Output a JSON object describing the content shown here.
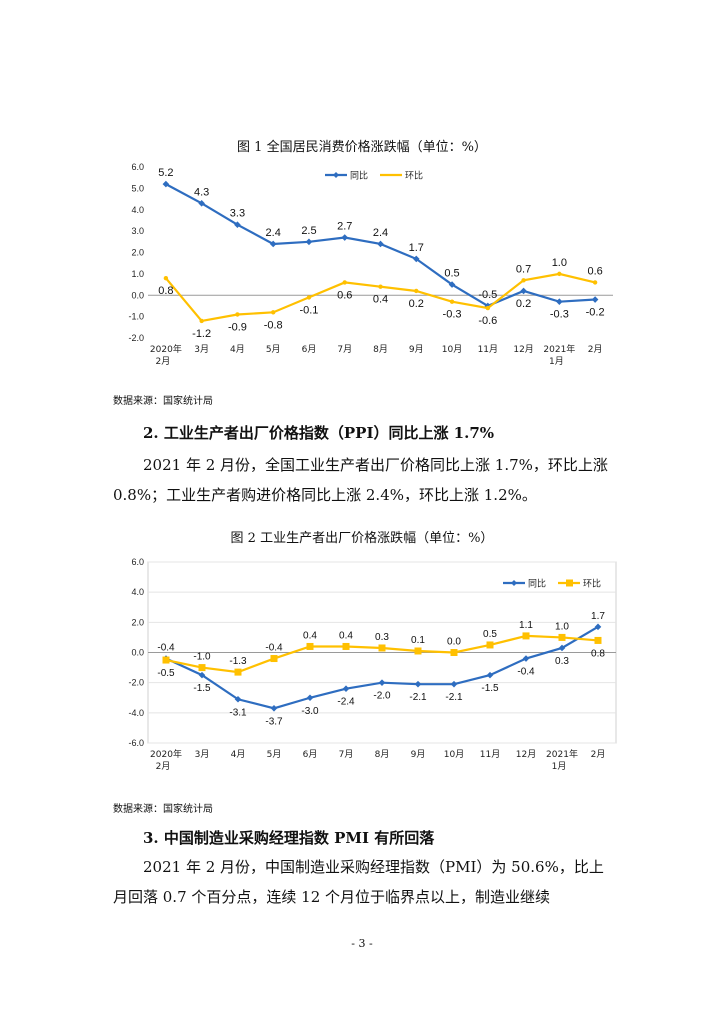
{
  "fig1": {
    "caption": "图 1    全国居民消费价格涨跌幅（单位：%）",
    "source": "数据来源：国家统计局"
  },
  "section2": {
    "heading": "2. 工业生产者出厂价格指数（PPI）同比上涨 1.7%",
    "paragraph": "2021 年 2 月份，全国工业生产者出厂价格同比上涨 1.7%，环比上涨 0.8%；工业生产者购进价格同比上涨 2.4%，环比上涨 1.2%。"
  },
  "fig2": {
    "caption": "图 2    工业生产者出厂价格涨跌幅（单位：%）",
    "source": "数据来源：国家统计局"
  },
  "section3": {
    "heading": "3. 中国制造业采购经理指数 PMI 有所回落",
    "paragraph": "2021 年 2 月份，中国制造业采购经理指数（PMI）为 50.6%，比上月回落 0.7 个百分点，连续 12 个月位于临界点以上，制造业继续"
  },
  "page_number": "- 3 -",
  "colors": {
    "yoy": "#2E6DC0",
    "mom": "#FFC000"
  },
  "chart_data": [
    {
      "type": "line",
      "title": "图 1    全国居民消费价格涨跌幅（单位：%）",
      "categories": [
        [
          "2020年",
          "2月"
        ],
        [
          "3月"
        ],
        [
          "4月"
        ],
        [
          "5月"
        ],
        [
          "6月"
        ],
        [
          "7月"
        ],
        [
          "8月"
        ],
        [
          "9月"
        ],
        [
          "10月"
        ],
        [
          "11月"
        ],
        [
          "12月"
        ],
        [
          "2021年",
          "1月"
        ],
        [
          "2月"
        ]
      ],
      "series": [
        {
          "name": "同比",
          "values": [
            5.2,
            4.3,
            3.3,
            2.4,
            2.5,
            2.7,
            2.4,
            1.7,
            0.5,
            -0.5,
            0.2,
            -0.3,
            -0.2
          ]
        },
        {
          "name": "环比",
          "values": [
            0.8,
            -1.2,
            -0.9,
            -0.8,
            -0.1,
            0.6,
            0.4,
            0.2,
            -0.3,
            -0.6,
            0.7,
            1.0,
            0.6
          ]
        }
      ],
      "ylim": [
        -2.0,
        6.0
      ],
      "yticks": [
        "6.0",
        "5.0",
        "4.0",
        "3.0",
        "2.0",
        "1.0",
        "0.0",
        "-1.0",
        "-2.0"
      ],
      "legend": "top-right"
    },
    {
      "type": "line",
      "title": "图 2    工业生产者出厂价格涨跌幅（单位：%）",
      "categories": [
        [
          "2020年",
          "2月"
        ],
        [
          "3月"
        ],
        [
          "4月"
        ],
        [
          "5月"
        ],
        [
          "6月"
        ],
        [
          "7月"
        ],
        [
          "8月"
        ],
        [
          "9月"
        ],
        [
          "10月"
        ],
        [
          "11月"
        ],
        [
          "12月"
        ],
        [
          "2021年",
          "1月"
        ],
        [
          "2月"
        ]
      ],
      "series": [
        {
          "name": "同比",
          "values": [
            -0.4,
            -1.5,
            -3.1,
            -3.7,
            -3.0,
            -2.4,
            -2.0,
            -2.1,
            -2.1,
            -1.5,
            -0.4,
            0.3,
            1.7
          ]
        },
        {
          "name": "环比",
          "values": [
            -0.5,
            -1.0,
            -1.3,
            -0.4,
            0.4,
            0.4,
            0.3,
            0.1,
            0.0,
            0.5,
            1.1,
            1.0,
            0.8
          ]
        }
      ],
      "ylim": [
        -6.0,
        6.0
      ],
      "yticks": [
        "6.0",
        "4.0",
        "2.0",
        "0.0",
        "-2.0",
        "-4.0",
        "-6.0"
      ],
      "legend": "top-right"
    }
  ]
}
